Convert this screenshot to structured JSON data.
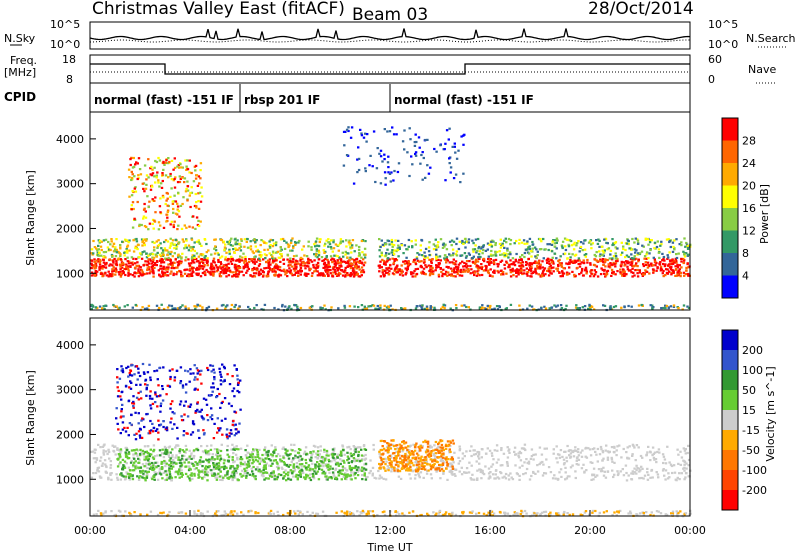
{
  "header": {
    "station": "Christmas Valley East (fitACF)",
    "beam": "Beam 03",
    "date": "28/Oct/2014"
  },
  "top_panels": {
    "nsky_label": "N.Sky",
    "nsky_ticks": [
      "10^5",
      "10^0"
    ],
    "nsearch_label": "N.Search",
    "nsearch_ticks": [
      "10^5",
      "10^0"
    ],
    "freq_label_1": "Freq.",
    "freq_label_2": "[MHz]",
    "freq_ticks": [
      "18",
      "8"
    ],
    "nave_label": "Nave",
    "nave_ticks": [
      "60",
      "0"
    ],
    "cpid_label": "CPID",
    "cpid_segments": [
      {
        "label": "normal (fast) -151 IF",
        "start": 0,
        "end": 6
      },
      {
        "label": "rbsp 201 IF",
        "start": 6,
        "end": 12
      },
      {
        "label": "normal (fast) -151 IF",
        "start": 12,
        "end": 24
      }
    ],
    "freq_series": [
      {
        "start": 0,
        "end": 3,
        "value": 14.8
      },
      {
        "start": 3,
        "end": 15,
        "value": 11.2
      },
      {
        "start": 15,
        "end": 24,
        "value": 14.8
      }
    ]
  },
  "chart_data": [
    {
      "type": "heatmap",
      "panel": "power",
      "ylabel": "Slant Range [km]",
      "ylim": [
        180,
        4600
      ],
      "yticks": [
        "1000",
        "2000",
        "3000",
        "4000"
      ],
      "xlim": [
        0,
        24
      ],
      "colorbar_label": "Power [dB]",
      "colorbar_ticks": [
        "28",
        "24",
        "20",
        "16",
        "12",
        "8",
        "4"
      ],
      "colors": [
        "#ff0000",
        "#ff6600",
        "#ffaa00",
        "#ffff00",
        "#88cc44",
        "#339966",
        "#336699",
        "#0000ff"
      ]
    },
    {
      "type": "heatmap",
      "panel": "velocity",
      "ylabel": "Slant Range [km]",
      "ylim": [
        180,
        4600
      ],
      "yticks": [
        "1000",
        "2000",
        "3000",
        "4000"
      ],
      "xlim": [
        0,
        24
      ],
      "xlabel": "Time UT",
      "xticks": [
        "00:00",
        "04:00",
        "08:00",
        "12:00",
        "16:00",
        "20:00",
        "00:00"
      ],
      "colorbar_label": "Velocity [m s^-1]",
      "colorbar_ticks": [
        "200",
        "100",
        "50",
        "15",
        "-15",
        "-50",
        "-100",
        "-200"
      ],
      "colors": [
        "#0000cc",
        "#3355cc",
        "#339933",
        "#66cc33",
        "#cccccc",
        "#ffaa00",
        "#ff7700",
        "#ff4400",
        "#ff0000"
      ]
    }
  ]
}
